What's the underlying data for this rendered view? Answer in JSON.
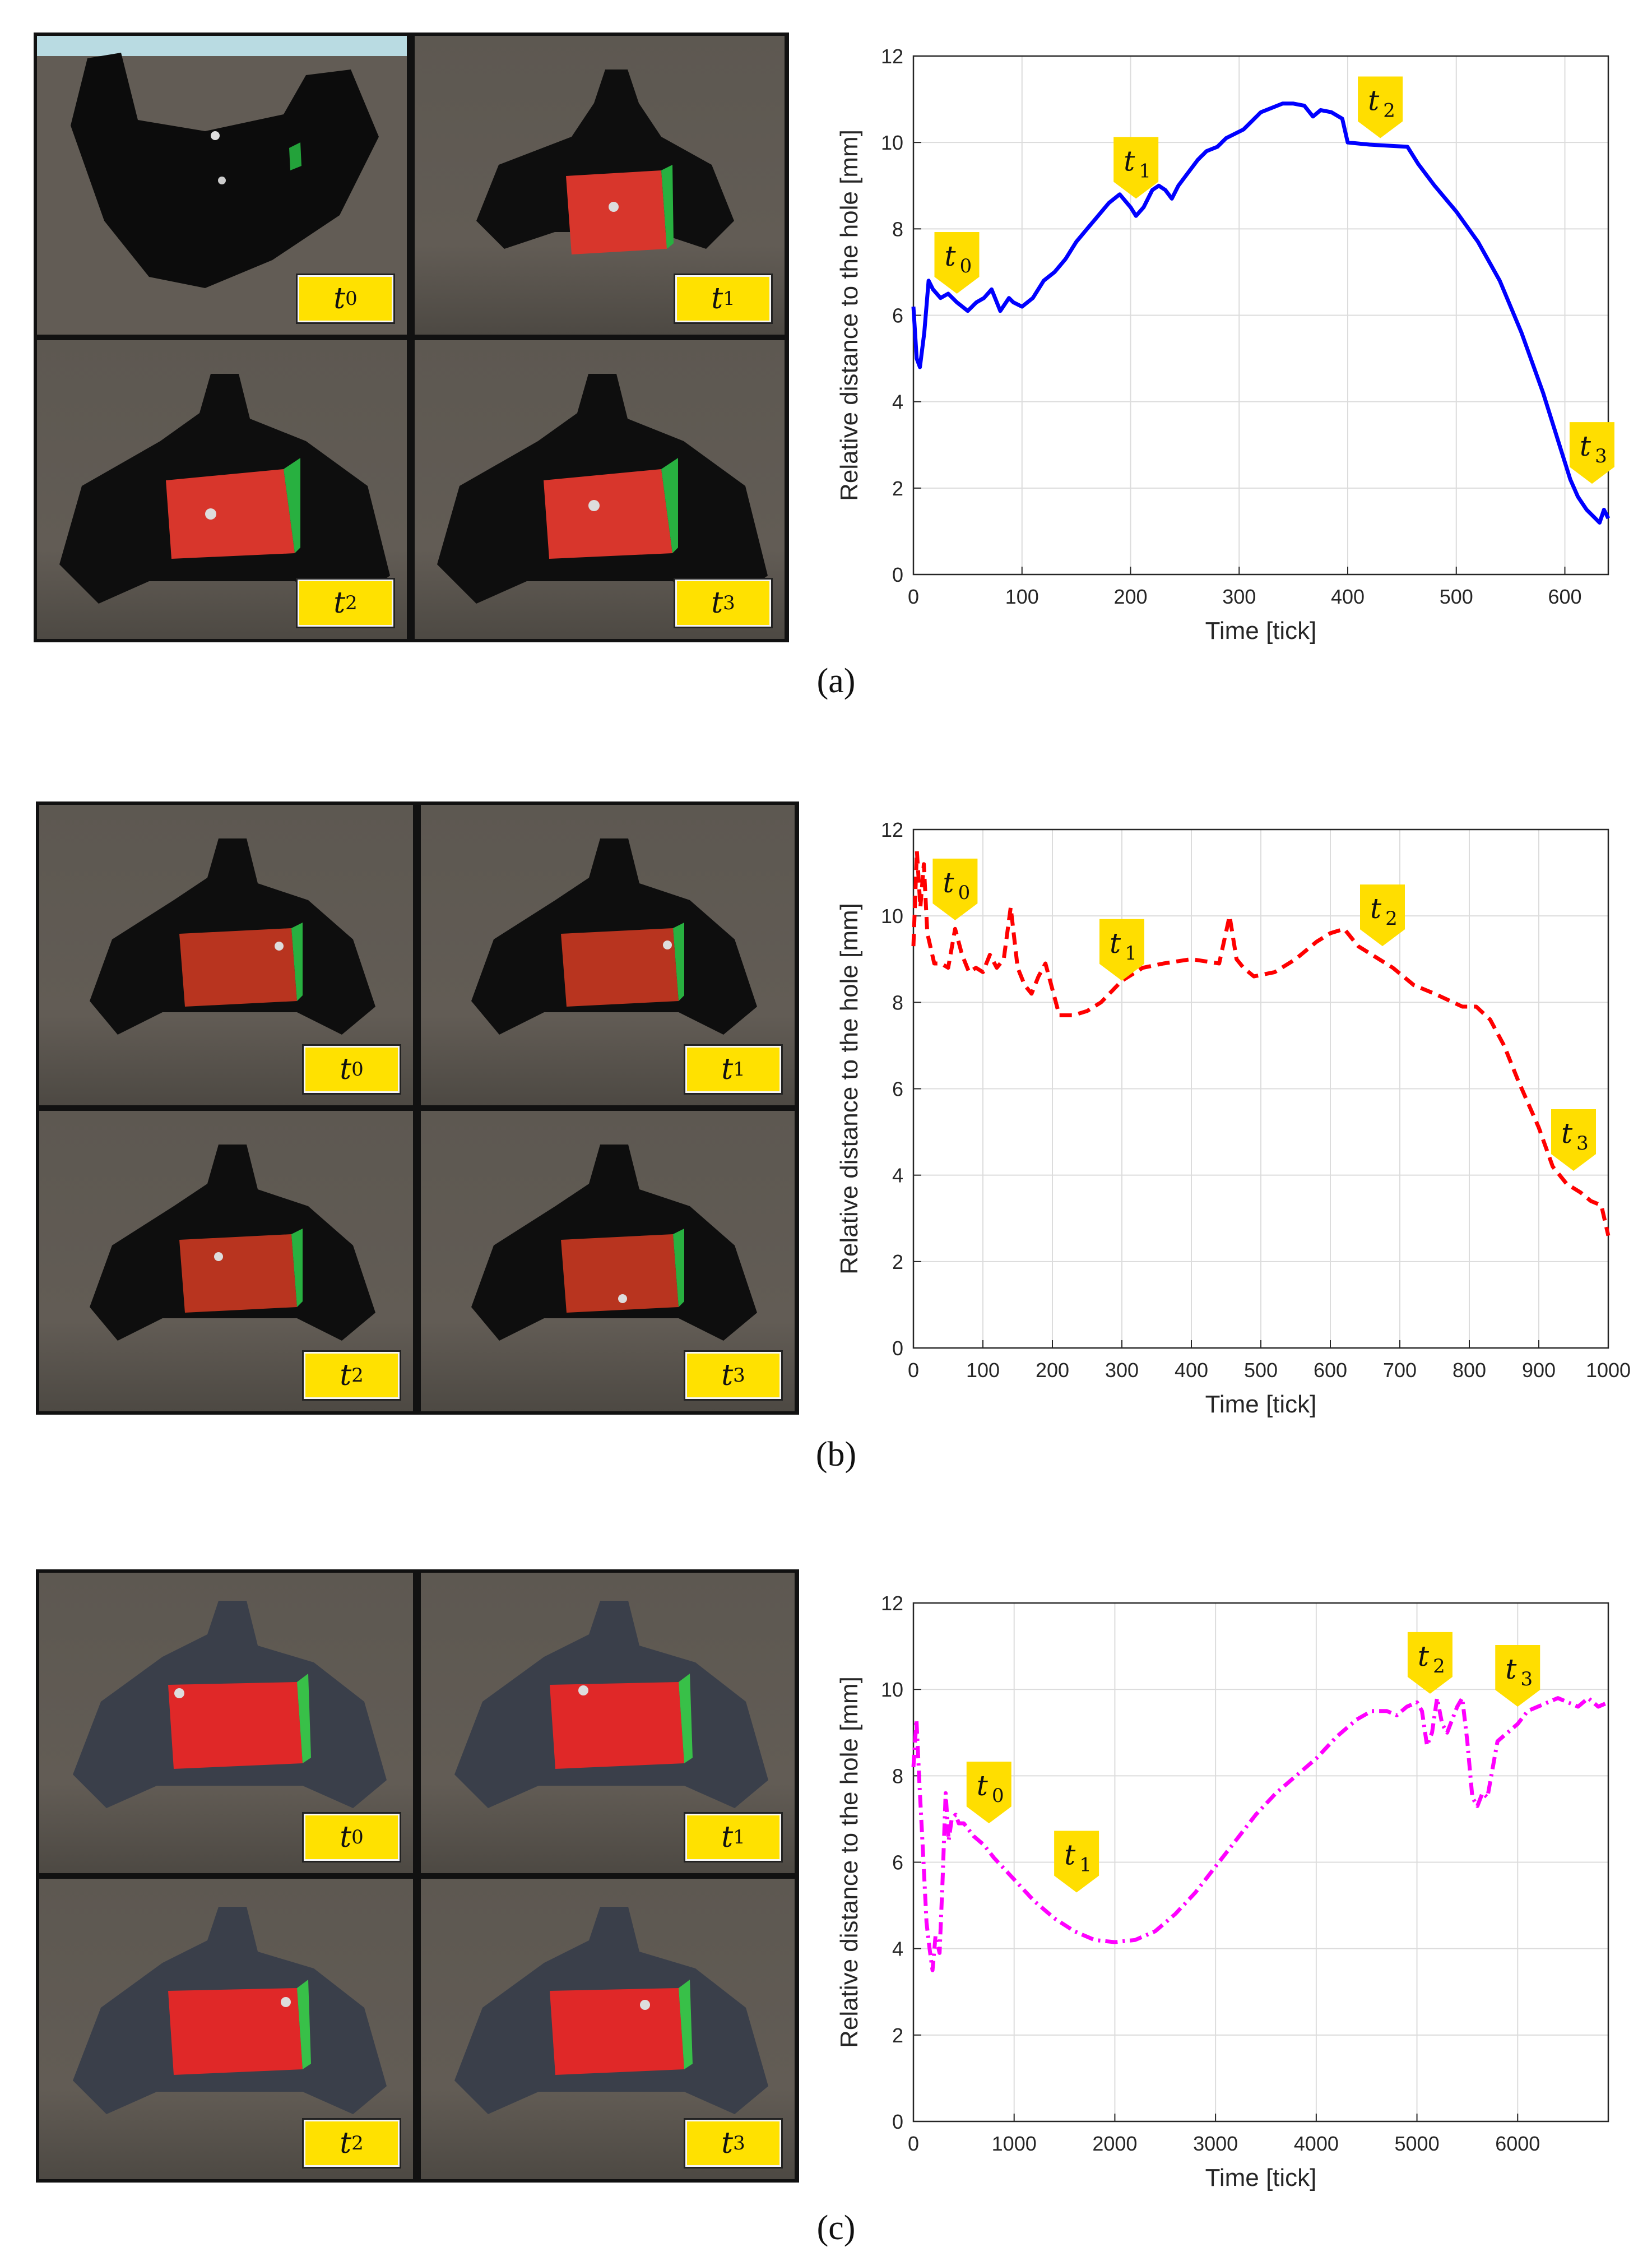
{
  "panels": [
    {
      "caption": "(a)",
      "tiles": [
        {
          "label": "t",
          "sub": "0"
        },
        {
          "label": "t",
          "sub": "1"
        },
        {
          "label": "t",
          "sub": "2"
        },
        {
          "label": "t",
          "sub": "3"
        }
      ]
    },
    {
      "caption": "(b)",
      "tiles": [
        {
          "label": "t",
          "sub": "0"
        },
        {
          "label": "t",
          "sub": "1"
        },
        {
          "label": "t",
          "sub": "2"
        },
        {
          "label": "t",
          "sub": "3"
        }
      ]
    },
    {
      "caption": "(c)",
      "tiles": [
        {
          "label": "t",
          "sub": "0"
        },
        {
          "label": "t",
          "sub": "1"
        },
        {
          "label": "t",
          "sub": "2"
        },
        {
          "label": "t",
          "sub": "3"
        }
      ]
    }
  ],
  "chart_data": [
    {
      "type": "line",
      "xlabel": "Time [tick]",
      "ylabel": "Relative distance to the hole [mm]",
      "xlim": [
        0,
        640
      ],
      "ylim": [
        0,
        12
      ],
      "xticks": [
        0,
        100,
        200,
        300,
        400,
        500,
        600
      ],
      "yticks": [
        0,
        2,
        4,
        6,
        8,
        10,
        12
      ],
      "grid": true,
      "series": [
        {
          "name": "distance",
          "color": "#0000ff",
          "style": "solid",
          "x": [
            0,
            3,
            6,
            10,
            14,
            18,
            25,
            32,
            40,
            50,
            58,
            65,
            72,
            80,
            88,
            92,
            100,
            110,
            120,
            130,
            140,
            150,
            160,
            170,
            180,
            190,
            200,
            205,
            212,
            220,
            226,
            232,
            238,
            244,
            250,
            256,
            262,
            270,
            280,
            288,
            296,
            304,
            312,
            320,
            330,
            340,
            350,
            360,
            368,
            375,
            385,
            395,
            400,
            420,
            440,
            455,
            465,
            480,
            500,
            520,
            540,
            560,
            580,
            595,
            605,
            612,
            620,
            628,
            632,
            636,
            640
          ],
          "y": [
            6.2,
            5.0,
            4.8,
            5.6,
            6.8,
            6.6,
            6.4,
            6.5,
            6.3,
            6.1,
            6.3,
            6.4,
            6.6,
            6.1,
            6.4,
            6.3,
            6.2,
            6.4,
            6.8,
            7.0,
            7.3,
            7.7,
            8.0,
            8.3,
            8.6,
            8.8,
            8.5,
            8.3,
            8.5,
            8.9,
            9.0,
            8.9,
            8.7,
            9.0,
            9.2,
            9.4,
            9.6,
            9.8,
            9.9,
            10.1,
            10.2,
            10.3,
            10.5,
            10.7,
            10.8,
            10.9,
            10.9,
            10.85,
            10.6,
            10.75,
            10.7,
            10.55,
            10.0,
            9.95,
            9.92,
            9.9,
            9.5,
            9.0,
            8.4,
            7.7,
            6.8,
            5.6,
            4.2,
            3.0,
            2.2,
            1.8,
            1.5,
            1.3,
            1.2,
            1.5,
            1.3
          ]
        }
      ],
      "markers": [
        {
          "label": "t",
          "sub": "0",
          "x": 40,
          "y": 6.5
        },
        {
          "label": "t",
          "sub": "1",
          "x": 205,
          "y": 8.7
        },
        {
          "label": "t",
          "sub": "2",
          "x": 430,
          "y": 10.1
        },
        {
          "label": "t",
          "sub": "3",
          "x": 625,
          "y": 2.1
        }
      ]
    },
    {
      "type": "line",
      "xlabel": "Time [tick]",
      "ylabel": "Relative distance to the hole [mm]",
      "xlim": [
        0,
        1000
      ],
      "ylim": [
        0,
        12
      ],
      "xticks": [
        0,
        100,
        200,
        300,
        400,
        500,
        600,
        700,
        800,
        900,
        1000
      ],
      "yticks": [
        0,
        2,
        4,
        6,
        8,
        10,
        12
      ],
      "grid": true,
      "series": [
        {
          "name": "distance",
          "color": "#ff0000",
          "style": "dashed",
          "x": [
            0,
            5,
            10,
            15,
            20,
            30,
            40,
            50,
            60,
            70,
            80,
            90,
            100,
            110,
            120,
            130,
            140,
            150,
            160,
            170,
            180,
            190,
            200,
            210,
            230,
            250,
            270,
            300,
            330,
            360,
            400,
            440,
            455,
            465,
            475,
            490,
            520,
            550,
            580,
            600,
            620,
            640,
            660,
            690,
            720,
            750,
            790,
            810,
            830,
            850,
            870,
            900,
            920,
            940,
            960,
            975,
            990,
            1000
          ],
          "y": [
            9.3,
            11.5,
            10.2,
            11.2,
            9.6,
            8.9,
            8.9,
            8.8,
            9.7,
            9.1,
            8.7,
            8.8,
            8.7,
            9.1,
            8.8,
            9.0,
            10.2,
            8.8,
            8.4,
            8.2,
            8.6,
            8.9,
            8.3,
            7.7,
            7.7,
            7.8,
            8.0,
            8.5,
            8.8,
            8.9,
            9.0,
            8.9,
            10.0,
            9.0,
            8.8,
            8.6,
            8.7,
            9.0,
            9.4,
            9.6,
            9.7,
            9.3,
            9.1,
            8.8,
            8.4,
            8.2,
            7.9,
            7.9,
            7.6,
            7.0,
            6.2,
            5.1,
            4.2,
            3.8,
            3.6,
            3.4,
            3.3,
            2.6
          ]
        }
      ],
      "markers": [
        {
          "label": "t",
          "sub": "0",
          "x": 60,
          "y": 9.9
        },
        {
          "label": "t",
          "sub": "1",
          "x": 300,
          "y": 8.5
        },
        {
          "label": "t",
          "sub": "2",
          "x": 675,
          "y": 9.3
        },
        {
          "label": "t",
          "sub": "3",
          "x": 950,
          "y": 4.1
        }
      ]
    },
    {
      "type": "line",
      "xlabel": "Time [tick]",
      "ylabel": "Relative distance to the hole [mm]",
      "xlim": [
        0,
        6900
      ],
      "ylim": [
        0,
        12
      ],
      "xticks": [
        0,
        1000,
        2000,
        3000,
        4000,
        5000,
        6000
      ],
      "yticks": [
        0,
        2,
        4,
        6,
        8,
        10,
        12
      ],
      "grid": true,
      "series": [
        {
          "name": "distance",
          "color": "#ff00ff",
          "style": "dashdot",
          "x": [
            0,
            30,
            60,
            100,
            130,
            160,
            190,
            220,
            260,
            290,
            320,
            350,
            380,
            420,
            450,
            500,
            600,
            700,
            800,
            1000,
            1200,
            1400,
            1600,
            1800,
            2000,
            2200,
            2400,
            2600,
            2800,
            3000,
            3200,
            3400,
            3600,
            3800,
            4000,
            4200,
            4400,
            4550,
            4700,
            4800,
            4900,
            5000,
            5050,
            5100,
            5150,
            5200,
            5250,
            5300,
            5350,
            5400,
            5450,
            5500,
            5550,
            5600,
            5650,
            5700,
            5800,
            5900,
            6000,
            6100,
            6200,
            6300,
            6400,
            6500,
            6600,
            6700,
            6800,
            6900
          ],
          "y": [
            8.2,
            9.3,
            7.8,
            6.0,
            4.6,
            4.0,
            3.5,
            4.3,
            3.9,
            5.6,
            7.6,
            6.5,
            7.0,
            7.1,
            6.9,
            6.9,
            6.6,
            6.4,
            6.1,
            5.6,
            5.1,
            4.7,
            4.4,
            4.2,
            4.15,
            4.2,
            4.4,
            4.8,
            5.3,
            5.9,
            6.5,
            7.1,
            7.6,
            8.0,
            8.4,
            8.9,
            9.3,
            9.5,
            9.5,
            9.4,
            9.6,
            9.7,
            9.5,
            8.7,
            9.0,
            9.8,
            9.2,
            9.0,
            9.3,
            9.6,
            9.8,
            8.8,
            7.5,
            7.3,
            7.6,
            7.5,
            8.8,
            9.0,
            9.2,
            9.5,
            9.6,
            9.7,
            9.8,
            9.7,
            9.6,
            9.8,
            9.6,
            9.7
          ]
        }
      ],
      "markers": [
        {
          "label": "t",
          "sub": "0",
          "x": 750,
          "y": 6.9
        },
        {
          "label": "t",
          "sub": "1",
          "x": 1620,
          "y": 5.3
        },
        {
          "label": "t",
          "sub": "2",
          "x": 5130,
          "y": 9.9
        },
        {
          "label": "t",
          "sub": "3",
          "x": 6000,
          "y": 9.6
        }
      ]
    }
  ]
}
